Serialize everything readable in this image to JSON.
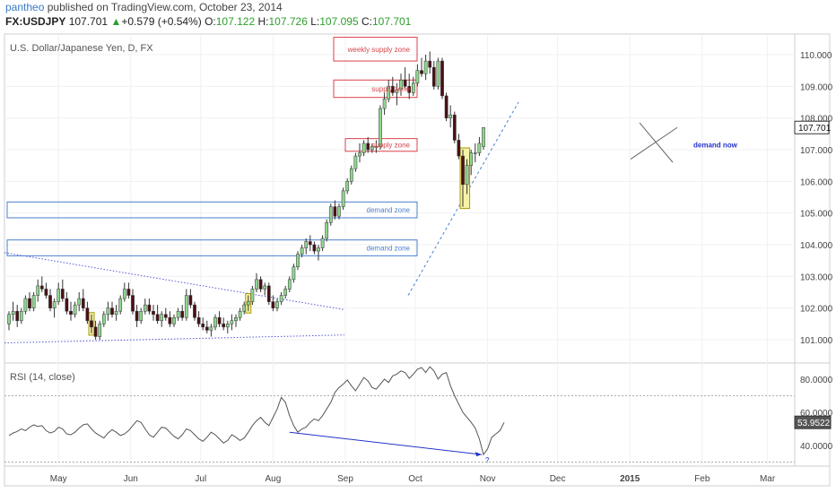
{
  "header": {
    "user": "pantheo",
    "published": " published on TradingView.com, October 23, 2014",
    "symbol": "FX:USDJPY",
    "last": "107.701",
    "arrow": "▲",
    "change": "+0.579 (+0.54%)",
    "o_label": "O:",
    "o_val": "107.122",
    "h_label": "H:",
    "h_val": "107.726",
    "l_label": "L:",
    "l_val": "107.095",
    "c_label": "C:",
    "c_val": "107.701"
  },
  "chart_data": [
    {
      "type": "candlestick",
      "title": "U.S. Dollar/Japanese Yen, D, FX",
      "ylim": [
        100.5,
        110.6
      ],
      "y_ticks": [
        "110.000",
        "109.000",
        "108.000",
        "107.000",
        "106.000",
        "105.000",
        "104.000",
        "103.000",
        "102.000",
        "101.000"
      ],
      "last_price": "107.701",
      "zones": [
        {
          "label": "weekly supply zone",
          "color": "#d9434a",
          "low": 109.8,
          "high": 110.55,
          "start": 140,
          "end": 175
        },
        {
          "label": "supply zone",
          "color": "#d9434a",
          "low": 108.65,
          "high": 109.2,
          "start": 140,
          "end": 175
        },
        {
          "label": "supply zone",
          "color": "#d9434a",
          "low": 106.95,
          "high": 107.35,
          "start": 145,
          "end": 175
        },
        {
          "label": "demand zone",
          "color": "#4a7fd0",
          "low": 104.85,
          "high": 105.35,
          "start": 0,
          "end": 175
        },
        {
          "label": "demand zone",
          "color": "#4a7fd0",
          "low": 103.65,
          "high": 104.15,
          "start": 0,
          "end": 175
        }
      ],
      "annotations": [
        {
          "text": "demand now",
          "color": "#2233cc"
        }
      ],
      "months": [
        {
          "label": "May",
          "day": 22
        },
        {
          "label": "Jun",
          "day": 53
        },
        {
          "label": "Jul",
          "day": 83
        },
        {
          "label": "Aug",
          "day": 114
        },
        {
          "label": "Sep",
          "day": 145
        },
        {
          "label": "Oct",
          "day": 175
        },
        {
          "label": "Nov",
          "day": 206
        },
        {
          "label": "Dec",
          "day": 236
        },
        {
          "label": "2015",
          "day": 267
        },
        {
          "label": "Feb",
          "day": 298
        },
        {
          "label": "Mar",
          "day": 326
        }
      ],
      "candles": [
        [
          101.5,
          101.9,
          101.3,
          101.8
        ],
        [
          101.8,
          102.2,
          101.6,
          101.9
        ],
        [
          101.9,
          102.1,
          101.4,
          101.6
        ],
        [
          101.6,
          102.0,
          101.5,
          101.9
        ],
        [
          101.9,
          102.4,
          101.8,
          102.3
        ],
        [
          102.3,
          102.5,
          101.9,
          102.0
        ],
        [
          102.0,
          102.5,
          101.9,
          102.4
        ],
        [
          102.4,
          102.9,
          102.2,
          102.7
        ],
        [
          102.7,
          103.0,
          102.5,
          102.6
        ],
        [
          102.6,
          102.8,
          102.3,
          102.4
        ],
        [
          102.4,
          102.6,
          101.9,
          102.0
        ],
        [
          102.0,
          102.3,
          101.7,
          102.2
        ],
        [
          102.2,
          102.8,
          102.1,
          102.6
        ],
        [
          102.6,
          102.9,
          102.2,
          102.3
        ],
        [
          102.3,
          102.5,
          101.8,
          101.9
        ],
        [
          101.9,
          102.2,
          101.6,
          101.8
        ],
        [
          101.8,
          102.2,
          101.7,
          102.1
        ],
        [
          102.1,
          102.5,
          101.9,
          102.3
        ],
        [
          102.3,
          102.6,
          101.9,
          102.0
        ],
        [
          102.0,
          102.2,
          101.5,
          101.6
        ],
        [
          101.6,
          101.8,
          101.2,
          101.4
        ],
        [
          101.4,
          101.6,
          101.0,
          101.1
        ],
        [
          101.1,
          101.6,
          101.0,
          101.5
        ],
        [
          101.5,
          101.9,
          101.4,
          101.8
        ],
        [
          101.8,
          102.2,
          101.6,
          102.0
        ],
        [
          102.0,
          102.2,
          101.7,
          101.8
        ],
        [
          101.8,
          102.1,
          101.6,
          101.9
        ],
        [
          101.9,
          102.4,
          101.8,
          102.3
        ],
        [
          102.3,
          102.8,
          102.2,
          102.6
        ],
        [
          102.6,
          102.8,
          102.3,
          102.4
        ],
        [
          102.4,
          102.6,
          101.8,
          101.9
        ],
        [
          101.9,
          102.1,
          101.4,
          101.6
        ],
        [
          101.6,
          102.0,
          101.5,
          101.9
        ],
        [
          101.9,
          102.3,
          101.8,
          102.1
        ],
        [
          102.1,
          102.3,
          101.8,
          101.9
        ],
        [
          101.9,
          102.1,
          101.6,
          101.8
        ],
        [
          101.8,
          102.1,
          101.5,
          101.6
        ],
        [
          101.6,
          101.9,
          101.4,
          101.8
        ],
        [
          101.8,
          102.0,
          101.6,
          101.7
        ],
        [
          101.7,
          101.9,
          101.4,
          101.5
        ],
        [
          101.5,
          101.8,
          101.4,
          101.7
        ],
        [
          101.7,
          102.0,
          101.6,
          101.9
        ],
        [
          101.9,
          102.1,
          101.6,
          101.7
        ],
        [
          101.7,
          102.6,
          101.6,
          102.4
        ],
        [
          102.4,
          102.6,
          102.0,
          102.1
        ],
        [
          102.1,
          102.2,
          101.6,
          101.7
        ],
        [
          101.7,
          101.9,
          101.4,
          101.5
        ],
        [
          101.5,
          101.7,
          101.3,
          101.4
        ],
        [
          101.4,
          101.6,
          101.2,
          101.3
        ],
        [
          101.3,
          101.5,
          101.1,
          101.4
        ],
        [
          101.4,
          101.8,
          101.3,
          101.7
        ],
        [
          101.7,
          101.9,
          101.4,
          101.5
        ],
        [
          101.5,
          101.7,
          101.3,
          101.4
        ],
        [
          101.4,
          101.6,
          101.2,
          101.5
        ],
        [
          101.5,
          101.8,
          101.3,
          101.6
        ],
        [
          101.6,
          101.8,
          101.4,
          101.7
        ],
        [
          101.7,
          102.0,
          101.6,
          101.9
        ],
        [
          101.9,
          102.2,
          101.8,
          102.1
        ],
        [
          102.1,
          102.4,
          101.9,
          102.2
        ],
        [
          102.2,
          102.7,
          102.1,
          102.6
        ],
        [
          102.6,
          103.1,
          102.5,
          102.9
        ],
        [
          102.9,
          103.0,
          102.5,
          102.6
        ],
        [
          102.6,
          102.8,
          102.4,
          102.7
        ],
        [
          102.7,
          102.8,
          102.1,
          102.2
        ],
        [
          102.2,
          102.4,
          101.9,
          102.0
        ],
        [
          102.0,
          102.3,
          101.9,
          102.2
        ],
        [
          102.2,
          102.5,
          102.1,
          102.4
        ],
        [
          102.4,
          102.7,
          102.3,
          102.6
        ],
        [
          102.6,
          103.0,
          102.5,
          102.9
        ],
        [
          102.9,
          103.4,
          102.8,
          103.3
        ],
        [
          103.3,
          103.8,
          103.2,
          103.7
        ],
        [
          103.7,
          104.0,
          103.6,
          103.9
        ],
        [
          103.9,
          104.2,
          103.7,
          104.1
        ],
        [
          104.1,
          104.3,
          103.8,
          104.0
        ],
        [
          104.0,
          104.1,
          103.7,
          103.8
        ],
        [
          103.8,
          104.0,
          103.5,
          103.9
        ],
        [
          103.9,
          104.3,
          103.8,
          104.2
        ],
        [
          104.2,
          104.8,
          104.1,
          104.7
        ],
        [
          104.7,
          105.3,
          104.6,
          105.2
        ],
        [
          105.2,
          105.4,
          104.8,
          104.9
        ],
        [
          104.9,
          105.3,
          104.8,
          105.2
        ],
        [
          105.2,
          105.8,
          105.1,
          105.7
        ],
        [
          105.7,
          106.1,
          105.6,
          106.0
        ],
        [
          106.0,
          106.5,
          105.9,
          106.4
        ],
        [
          106.4,
          106.9,
          106.3,
          106.8
        ],
        [
          106.8,
          107.2,
          106.6,
          106.9
        ],
        [
          106.9,
          107.3,
          106.8,
          107.2
        ],
        [
          107.2,
          107.4,
          106.9,
          107.0
        ],
        [
          107.0,
          107.2,
          106.9,
          107.1
        ],
        [
          107.1,
          107.3,
          106.9,
          107.1
        ],
        [
          107.1,
          108.4,
          107.0,
          108.3
        ],
        [
          108.3,
          108.8,
          108.1,
          108.6
        ],
        [
          108.6,
          109.2,
          108.5,
          109.0
        ],
        [
          109.0,
          109.3,
          108.7,
          108.8
        ],
        [
          108.8,
          109.1,
          108.4,
          108.9
        ],
        [
          108.9,
          109.4,
          108.7,
          109.2
        ],
        [
          109.2,
          109.6,
          108.9,
          109.0
        ],
        [
          109.0,
          109.4,
          108.6,
          108.8
        ],
        [
          108.8,
          109.3,
          108.7,
          109.1
        ],
        [
          109.1,
          109.7,
          109.0,
          109.5
        ],
        [
          109.5,
          109.9,
          109.3,
          109.4
        ],
        [
          109.4,
          110.0,
          109.2,
          109.8
        ],
        [
          109.8,
          110.1,
          109.4,
          109.6
        ],
        [
          109.6,
          109.8,
          108.9,
          109.0
        ],
        [
          109.0,
          109.9,
          108.9,
          109.8
        ],
        [
          109.8,
          109.9,
          108.6,
          108.7
        ],
        [
          108.7,
          108.8,
          107.9,
          108.0
        ],
        [
          108.0,
          108.4,
          107.7,
          108.1
        ],
        [
          108.1,
          108.2,
          107.2,
          107.3
        ],
        [
          107.3,
          107.5,
          106.7,
          106.8
        ],
        [
          106.8,
          107.0,
          105.2,
          105.9
        ],
        [
          105.9,
          106.7,
          105.6,
          106.5
        ],
        [
          106.5,
          107.0,
          106.2,
          106.9
        ],
        [
          106.9,
          107.2,
          106.6,
          106.9
        ],
        [
          106.9,
          107.4,
          106.8,
          107.2
        ],
        [
          107.1,
          107.7,
          107.0,
          107.7
        ]
      ],
      "highlight_boxes": [
        {
          "from": 20,
          "to": 20
        },
        {
          "from": 58,
          "to": 58
        },
        {
          "from": 110,
          "to": 111
        }
      ]
    },
    {
      "type": "line",
      "title": "RSI (14, close)",
      "ylim": [
        28,
        92
      ],
      "y_ticks": [
        "80.0000",
        "60.0000",
        "40.0000"
      ],
      "last_value": "53.9522",
      "guides": [
        70,
        30
      ],
      "divergence_label": "?",
      "values": [
        46.0,
        47.5,
        48.5,
        50.0,
        49.0,
        51.0,
        52.5,
        51.5,
        52.0,
        49.0,
        47.5,
        48.5,
        51.0,
        50.0,
        47.0,
        46.5,
        48.0,
        50.5,
        52.5,
        53.0,
        50.0,
        47.5,
        46.0,
        44.5,
        47.5,
        49.5,
        48.0,
        46.0,
        47.0,
        49.0,
        52.0,
        55.0,
        54.0,
        50.0,
        46.5,
        45.0,
        48.0,
        51.0,
        50.5,
        48.0,
        45.5,
        44.0,
        46.5,
        50.0,
        49.0,
        46.5,
        44.0,
        42.5,
        45.0,
        48.0,
        46.5,
        44.0,
        41.5,
        43.0,
        46.5,
        45.0,
        43.0,
        44.5,
        48.0,
        52.0,
        55.0,
        57.0,
        54.0,
        52.0,
        57.0,
        62.0,
        69.0,
        66.0,
        58.0,
        52.0,
        48.0,
        50.0,
        51.0,
        54.0,
        56.0,
        55.0,
        58.0,
        62.0,
        66.0,
        72.0,
        75.0,
        77.0,
        79.5,
        76.0,
        73.0,
        77.0,
        81.0,
        79.0,
        75.0,
        74.0,
        77.0,
        80.0,
        78.0,
        82.0,
        83.0,
        85.0,
        84.0,
        80.5,
        83.0,
        86.0,
        87.0,
        84.0,
        87.5,
        85.0,
        80.0,
        83.0,
        84.0,
        76.0,
        70.0,
        65.0,
        60.0,
        57.0,
        54.0,
        50.5,
        44.0,
        34.5,
        38.0,
        45.0,
        47.0,
        49.0,
        53.9
      ]
    }
  ]
}
